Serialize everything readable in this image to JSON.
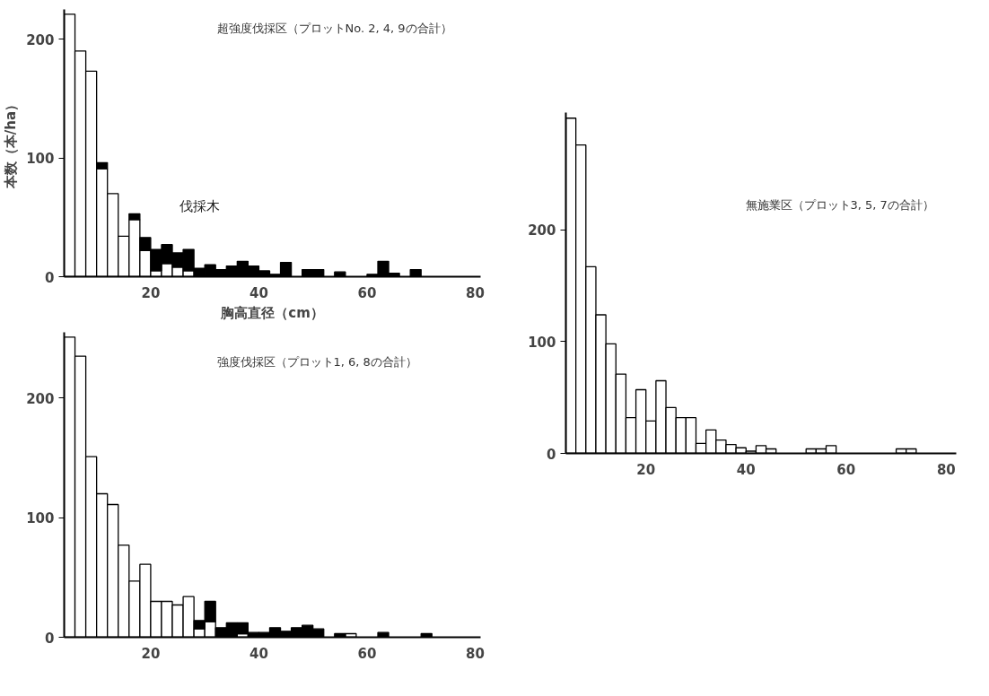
{
  "chart_data": [
    {
      "type": "bar",
      "title": "超強度伐採区（プロットNo. 2, 4, 9の合計）",
      "xlabel": "胸高直径（cm）",
      "ylabel": "本数（本/ha）",
      "stacked": true,
      "grid": false,
      "x": [
        5,
        7,
        9,
        11,
        13,
        15,
        17,
        19,
        21,
        23,
        25,
        27,
        29,
        31,
        33,
        35,
        37,
        39,
        41,
        43,
        45,
        47,
        49,
        51,
        53,
        55,
        57,
        59,
        61,
        63,
        65,
        67,
        69
      ],
      "series": [
        {
          "color": "#ffffff",
          "values": [
            221,
            190,
            173,
            91,
            70,
            34,
            48,
            22,
            5,
            11,
            8,
            5,
            0,
            0,
            0,
            0,
            0,
            0,
            0,
            0,
            0,
            0,
            0,
            0,
            0,
            0,
            0,
            0,
            0,
            0,
            0,
            0,
            0
          ]
        },
        {
          "color": "#000000",
          "values": [
            0,
            0,
            0,
            5,
            0,
            0,
            5,
            11,
            18,
            16,
            12,
            18,
            7,
            10,
            6,
            9,
            13,
            9,
            5,
            2,
            12,
            0,
            6,
            6,
            0,
            4,
            0,
            0,
            2,
            13,
            3,
            0,
            6
          ]
        }
      ],
      "xlim": [
        4,
        81
      ],
      "ylim": [
        0,
        225
      ],
      "xticks": [
        20,
        40,
        60,
        80
      ],
      "yticks": [
        0,
        100,
        200
      ],
      "annotations": [
        {
          "text": "伐採木",
          "x": 27,
          "y": 22
        }
      ]
    },
    {
      "type": "bar",
      "title": "強度伐採区（プロット1, 6, 8の合計）",
      "stacked": true,
      "grid": false,
      "x": [
        5,
        7,
        9,
        11,
        13,
        15,
        17,
        19,
        21,
        23,
        25,
        27,
        29,
        31,
        33,
        35,
        37,
        39,
        41,
        43,
        45,
        47,
        49,
        51,
        53,
        55,
        57,
        59,
        61,
        63,
        65,
        67,
        69,
        71
      ],
      "series": [
        {
          "color": "#ffffff",
          "values": [
            251,
            235,
            151,
            120,
            111,
            77,
            47,
            61,
            30,
            30,
            27,
            34,
            7,
            13,
            0,
            0,
            3,
            0,
            0,
            0,
            0,
            0,
            0,
            0,
            0,
            0,
            3,
            0,
            0,
            0,
            0,
            0,
            0,
            0
          ]
        },
        {
          "color": "#000000",
          "values": [
            0,
            0,
            0,
            0,
            0,
            0,
            0,
            0,
            0,
            0,
            0,
            0,
            7,
            17,
            8,
            12,
            9,
            4,
            4,
            8,
            5,
            8,
            10,
            7,
            0,
            3,
            0,
            0,
            0,
            4,
            0,
            0,
            0,
            3
          ]
        }
      ],
      "xlim": [
        4,
        81
      ],
      "ylim": [
        0,
        255
      ],
      "xticks": [
        20,
        40,
        60,
        80
      ],
      "yticks": [
        0,
        100,
        200
      ]
    },
    {
      "type": "histogram",
      "title": "無施業区（プロット3, 5, 7の合計）",
      "grid": false,
      "bins": [
        4,
        6,
        8,
        10,
        12,
        14,
        16,
        18,
        20,
        22,
        24,
        26,
        28,
        30,
        32,
        34,
        36,
        38,
        40,
        42,
        44,
        46,
        48,
        50,
        52,
        54,
        56,
        58,
        60,
        62,
        64,
        66,
        68,
        70,
        72,
        74
      ],
      "series": [
        {
          "color": "#ffffff",
          "values": [
            300,
            276,
            167,
            124,
            98,
            71,
            32,
            57,
            29,
            65,
            41,
            32,
            32,
            9,
            21,
            12,
            8,
            5,
            2,
            7,
            4,
            0,
            0,
            0,
            4,
            4,
            7,
            0,
            0,
            0,
            0,
            0,
            0,
            4,
            4
          ]
        }
      ],
      "xlim": [
        4,
        82
      ],
      "ylim": [
        0,
        305
      ],
      "xticks": [
        20,
        40,
        60,
        80
      ],
      "yticks": [
        0,
        100,
        200
      ]
    }
  ]
}
